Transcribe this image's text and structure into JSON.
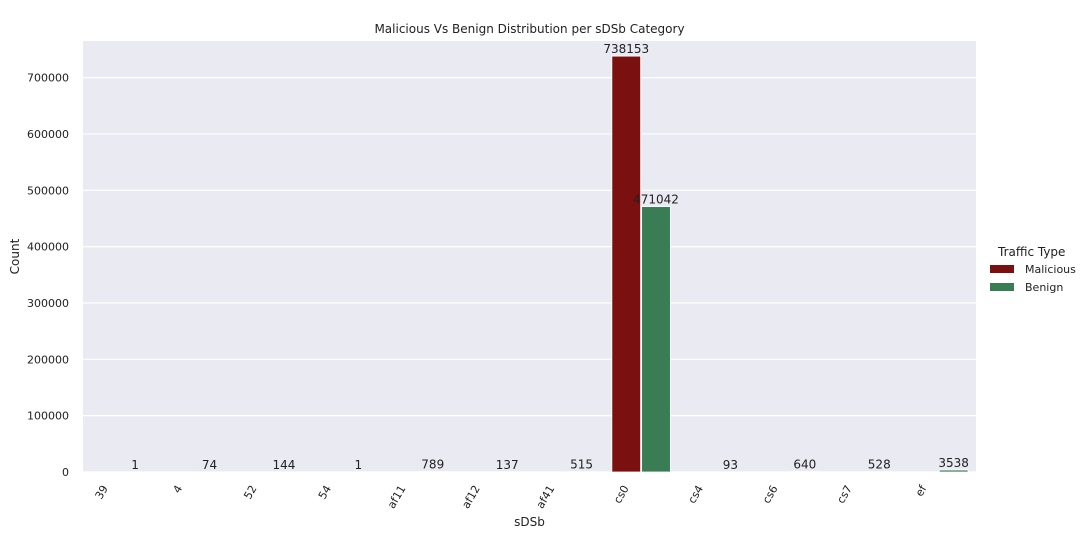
{
  "chart_data": {
    "type": "bar",
    "title": "Malicious Vs Benign Distribution per sDSb Category",
    "xlabel": "sDSb",
    "ylabel": "Count",
    "categories": [
      "39",
      "4",
      "52",
      "54",
      "af11",
      "af12",
      "af41",
      "cs0",
      "cs4",
      "cs6",
      "cs7",
      "ef"
    ],
    "series": [
      {
        "name": "Malicious",
        "color": "#7a1010",
        "values": [
          0,
          0,
          0,
          0,
          0,
          0,
          0,
          738153,
          0,
          0,
          0,
          0
        ]
      },
      {
        "name": "Benign",
        "color": "#3a7d55",
        "values": [
          1,
          74,
          144,
          1,
          789,
          137,
          515,
          471042,
          93,
          640,
          528,
          3538
        ]
      }
    ],
    "data_labels": [
      {
        "category": "39",
        "series": "Benign",
        "text": "1"
      },
      {
        "category": "4",
        "series": "Benign",
        "text": "74"
      },
      {
        "category": "52",
        "series": "Benign",
        "text": "144"
      },
      {
        "category": "54",
        "series": "Benign",
        "text": "1"
      },
      {
        "category": "af11",
        "series": "Benign",
        "text": "789"
      },
      {
        "category": "af12",
        "series": "Benign",
        "text": "137"
      },
      {
        "category": "af41",
        "series": "Benign",
        "text": "515"
      },
      {
        "category": "cs0",
        "series": "Malicious",
        "text": "738153"
      },
      {
        "category": "cs0",
        "series": "Benign",
        "text": "471042"
      },
      {
        "category": "cs4",
        "series": "Benign",
        "text": "93"
      },
      {
        "category": "cs6",
        "series": "Benign",
        "text": "640"
      },
      {
        "category": "cs7",
        "series": "Benign",
        "text": "528"
      },
      {
        "category": "ef",
        "series": "Benign",
        "text": "3538"
      }
    ],
    "ylim": [
      0,
      765000
    ],
    "yticks": [
      0,
      100000,
      200000,
      300000,
      400000,
      500000,
      600000,
      700000
    ],
    "grid": true,
    "background": "#eaeaf2",
    "legend": {
      "title": "Traffic Type",
      "position": "right"
    }
  }
}
